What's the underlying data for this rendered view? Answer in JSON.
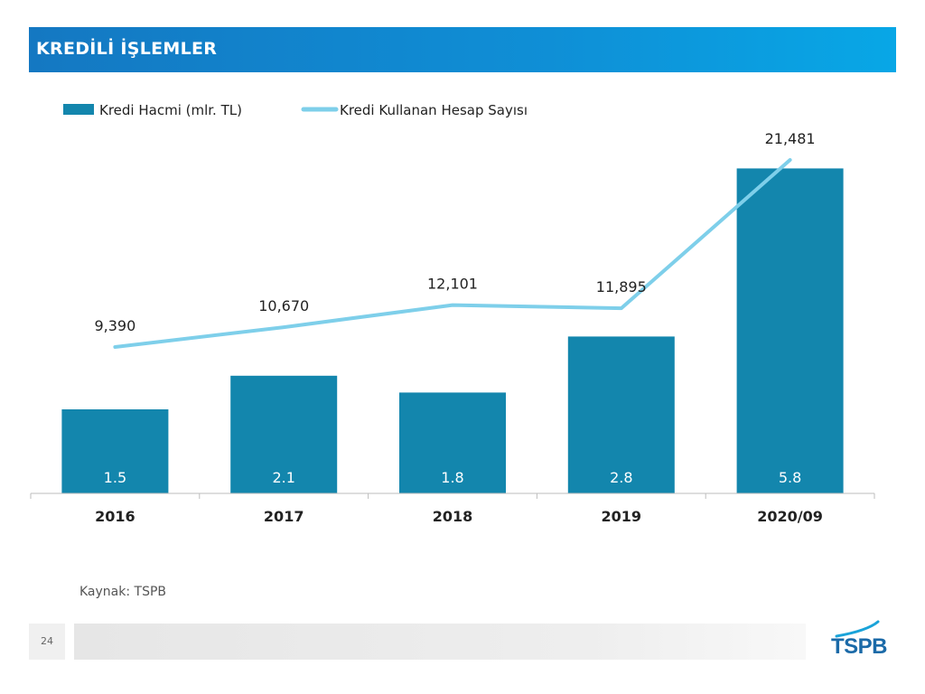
{
  "title": "KREDİLİ İŞLEMLER",
  "source": "Kaynak: TSPB",
  "page_number": "24",
  "logo_text": "TSPB",
  "colors": {
    "bar": "#1386ad",
    "line": "#7ecfea",
    "accent": "#1478c2"
  },
  "chart_data": {
    "type": "bar",
    "categories": [
      "2016",
      "2017",
      "2018",
      "2019",
      "2020/09"
    ],
    "series": [
      {
        "name": "Kredi Hacmi (mlr. TL)",
        "type": "bar",
        "values": [
          1.5,
          2.1,
          1.8,
          2.8,
          5.8
        ],
        "labels": [
          "1.5",
          "2.1",
          "1.8",
          "2.8",
          "5.8"
        ]
      },
      {
        "name": "Kredi Kullanan Hesap Sayısı",
        "type": "line",
        "values": [
          9390,
          10670,
          12101,
          11895,
          21481
        ],
        "labels": [
          "9,390",
          "10,670",
          "12,101",
          "11,895",
          "21,481"
        ]
      }
    ],
    "legend_position": "top-left",
    "grid": false
  }
}
